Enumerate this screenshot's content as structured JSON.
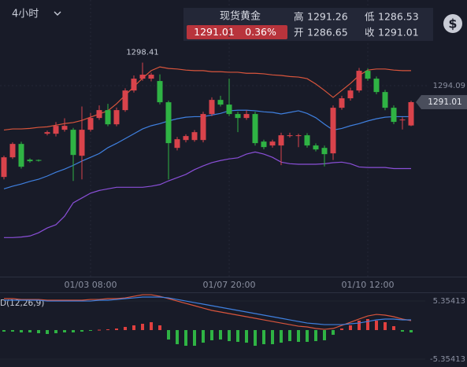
{
  "header": {
    "interval": "4小时"
  },
  "quote": {
    "name": "现货黄金",
    "price": "1291.01",
    "change": "0.36%",
    "high_label": "高",
    "high": "1291.26",
    "low_label": "低",
    "low": "1286.53",
    "open_label": "开",
    "open": "1286.65",
    "close_label": "收",
    "close": "1291.01"
  },
  "chart_data": [
    {
      "type": "candlestick",
      "categories": [
        null,
        null,
        null,
        null,
        null,
        null,
        null,
        null,
        null,
        null,
        "01/03 08:00",
        null,
        null,
        null,
        null,
        null,
        null,
        null,
        null,
        null,
        null,
        null,
        null,
        null,
        null,
        null,
        "01/07 20:00",
        null,
        null,
        null,
        null,
        null,
        null,
        null,
        null,
        null,
        null,
        null,
        null,
        null,
        null,
        null,
        "01/10 12:00",
        null,
        null,
        null,
        null,
        null
      ],
      "open": [
        1277.03,
        1280.7,
        1283.2,
        1280.26,
        1280.2,
        1285.11,
        1285.11,
        1285.85,
        1285.85,
        1280.99,
        1285.85,
        1288.05,
        1289.52,
        1286.87,
        1289.52,
        1293.19,
        1295.4,
        1295.4,
        1294.96,
        1290.99,
        1282.46,
        1283.93,
        1283.93,
        1283.93,
        1288.79,
        1291.43,
        1290.55,
        1288.79,
        1288.05,
        1288.79,
        1283.64,
        1282.91,
        1282.91,
        1284.7,
        1284.7,
        1284.82,
        1282.91,
        1282.46,
        1281.44,
        1289.96,
        1291.73,
        1293.19,
        1296.87,
        1295.4,
        1292.9,
        1289.96,
        1287.61,
        1286.65
      ],
      "high": [
        1281.0,
        1283.5,
        1283.6,
        1280.5,
        1280.3,
        1285.7,
        1287.3,
        1288.0,
        1286.2,
        1290.2,
        1289.0,
        1290.4,
        1290.7,
        1290.0,
        1293.6,
        1296.0,
        1298.41,
        1296.5,
        1296.2,
        1291.3,
        1284.5,
        1285.0,
        1285.8,
        1289.2,
        1291.9,
        1292.2,
        1295.4,
        1289.2,
        1289.5,
        1289.2,
        1284.0,
        1284.0,
        1285.3,
        1285.3,
        1285.1,
        1285.2,
        1283.3,
        1282.9,
        1290.4,
        1292.2,
        1293.7,
        1297.4,
        1297.3,
        1295.8,
        1293.3,
        1290.4,
        1288.2,
        1291.26
      ],
      "low": [
        1276.58,
        1280.4,
        1278.6,
        1279.7,
        1279.9,
        1284.8,
        1284.6,
        1285.5,
        1276.29,
        1276.58,
        1285.5,
        1287.7,
        1286.5,
        1286.5,
        1289.2,
        1292.8,
        1295.0,
        1294.9,
        1290.6,
        1276.58,
        1282.0,
        1283.5,
        1283.6,
        1283.5,
        1288.4,
        1290.2,
        1288.4,
        1285.4,
        1287.7,
        1282.9,
        1282.2,
        1282.5,
        1279.23,
        1284.4,
        1282.6,
        1282.5,
        1281.8,
        1279.0,
        1280.2,
        1289.6,
        1291.3,
        1292.8,
        1295.0,
        1292.5,
        1289.5,
        1286.9,
        1285.9,
        1286.53
      ],
      "close": [
        1280.7,
        1283.2,
        1278.94,
        1279.97,
        1280.05,
        1285.4,
        1286.58,
        1286.58,
        1281.14,
        1285.85,
        1288.05,
        1289.52,
        1286.87,
        1289.52,
        1293.19,
        1295.4,
        1296.14,
        1296.14,
        1290.99,
        1283.35,
        1284.08,
        1284.67,
        1285.4,
        1288.79,
        1291.43,
        1290.55,
        1288.79,
        1288.05,
        1288.79,
        1283.35,
        1282.61,
        1283.64,
        1284.82,
        1284.82,
        1284.82,
        1282.91,
        1282.17,
        1281.29,
        1289.96,
        1291.73,
        1293.19,
        1296.87,
        1295.4,
        1292.9,
        1289.96,
        1287.32,
        1287.76,
        1291.01
      ],
      "up_color": "#d9434b",
      "down_color": "#2fb344",
      "series": [
        {
          "color": "#d9553c",
          "values": [
            1285.8,
            1286.0,
            1286.0,
            1286.1,
            1286.3,
            1286.4,
            1286.7,
            1287.0,
            1287.2,
            1287.6,
            1288.2,
            1288.8,
            1289.4,
            1290.7,
            1292.3,
            1293.9,
            1295.5,
            1296.9,
            1297.6,
            1297.3,
            1297.2,
            1297.0,
            1296.9,
            1296.9,
            1296.7,
            1296.7,
            1296.6,
            1296.6,
            1296.4,
            1296.4,
            1296.3,
            1296.1,
            1296.0,
            1295.8,
            1295.7,
            1295.4,
            1294.4,
            1293.2,
            1291.9,
            1293.2,
            1294.5,
            1296.0,
            1297.0,
            1297.2,
            1297.2,
            1297.0,
            1296.9,
            1296.9
          ]
        },
        {
          "color": "#3f80e0",
          "values": [
            1274.8,
            1275.3,
            1275.7,
            1276.2,
            1276.6,
            1277.2,
            1277.9,
            1278.5,
            1279.2,
            1280.0,
            1280.7,
            1281.4,
            1282.5,
            1283.3,
            1284.2,
            1285.1,
            1286.0,
            1286.6,
            1287.0,
            1287.5,
            1287.9,
            1288.2,
            1288.3,
            1288.3,
            1288.6,
            1288.9,
            1289.4,
            1289.5,
            1289.5,
            1289.4,
            1289.2,
            1289.1,
            1288.8,
            1289.1,
            1289.4,
            1288.9,
            1288.1,
            1286.9,
            1285.8,
            1286.1,
            1286.6,
            1287.0,
            1287.5,
            1287.9,
            1288.2,
            1288.3,
            1288.3,
            1288.3
          ]
        },
        {
          "color": "#8a4fd8",
          "values": [
            1265.7,
            1265.7,
            1265.8,
            1266.0,
            1266.6,
            1267.5,
            1268.1,
            1269.7,
            1272.2,
            1273.1,
            1274.0,
            1274.5,
            1274.8,
            1275.1,
            1275.1,
            1275.1,
            1275.1,
            1275.3,
            1275.6,
            1276.3,
            1276.9,
            1277.5,
            1278.4,
            1279.1,
            1279.7,
            1280.1,
            1280.4,
            1280.6,
            1281.3,
            1281.7,
            1281.3,
            1280.7,
            1279.8,
            1279.5,
            1279.4,
            1279.4,
            1279.4,
            1279.5,
            1279.7,
            1279.8,
            1279.5,
            1278.9,
            1278.8,
            1278.8,
            1278.8,
            1278.6,
            1278.6,
            1278.6
          ]
        }
      ],
      "ylim": [
        1258.4,
        1310.1
      ],
      "yticks": [
        1294.09
      ],
      "high_annotation": 16,
      "last_price_index": 47
    },
    {
      "type": "bar",
      "title": "D(12,26,9)",
      "values": [
        -0.29,
        -0.29,
        -0.43,
        -0.43,
        -0.58,
        -0.72,
        -0.58,
        -0.43,
        -0.43,
        -0.29,
        -0.14,
        0.07,
        0.14,
        0.29,
        0.58,
        0.87,
        1.16,
        1.45,
        0.87,
        -1.74,
        -2.6,
        -2.89,
        -2.89,
        -2.32,
        -1.88,
        -1.74,
        -2.03,
        -2.17,
        -2.32,
        -2.89,
        -2.6,
        -2.6,
        -2.32,
        -2.03,
        -2.17,
        -2.17,
        -2.03,
        -1.88,
        -0.87,
        0.29,
        0.87,
        1.74,
        2.03,
        1.74,
        1.45,
        0.72,
        -0.29,
        -0.43
      ],
      "up_color": "#e0403f",
      "down_color": "#2fb344",
      "series": [
        {
          "color": "#d9553c",
          "values": [
            5.79,
            5.79,
            5.64,
            5.64,
            5.64,
            5.5,
            5.5,
            5.5,
            5.5,
            5.5,
            5.64,
            5.64,
            5.79,
            5.79,
            5.93,
            6.22,
            6.51,
            6.51,
            6.22,
            5.79,
            5.35,
            4.92,
            4.49,
            4.05,
            3.62,
            3.33,
            3.04,
            2.75,
            2.46,
            2.17,
            1.88,
            1.59,
            1.3,
            1.01,
            0.72,
            0.58,
            0.29,
            0.14,
            0.29,
            0.87,
            1.45,
            2.03,
            2.6,
            2.89,
            2.75,
            2.46,
            2.03,
            1.74
          ]
        },
        {
          "color": "#3f80e0",
          "values": [
            5.5,
            5.5,
            5.5,
            5.5,
            5.5,
            5.35,
            5.35,
            5.35,
            5.35,
            5.35,
            5.35,
            5.5,
            5.5,
            5.64,
            5.79,
            5.93,
            6.08,
            6.08,
            6.08,
            5.93,
            5.64,
            5.35,
            5.06,
            4.78,
            4.49,
            4.2,
            3.91,
            3.62,
            3.33,
            3.04,
            2.75,
            2.46,
            2.17,
            1.88,
            1.59,
            1.3,
            1.16,
            1.01,
            1.01,
            1.01,
            1.16,
            1.3,
            1.59,
            1.88,
            2.03,
            2.03,
            1.88,
            1.88
          ]
        }
      ],
      "ylim": [
        -6.51,
        6.95
      ],
      "yticks": [
        5.35413,
        -5.35413
      ]
    }
  ]
}
